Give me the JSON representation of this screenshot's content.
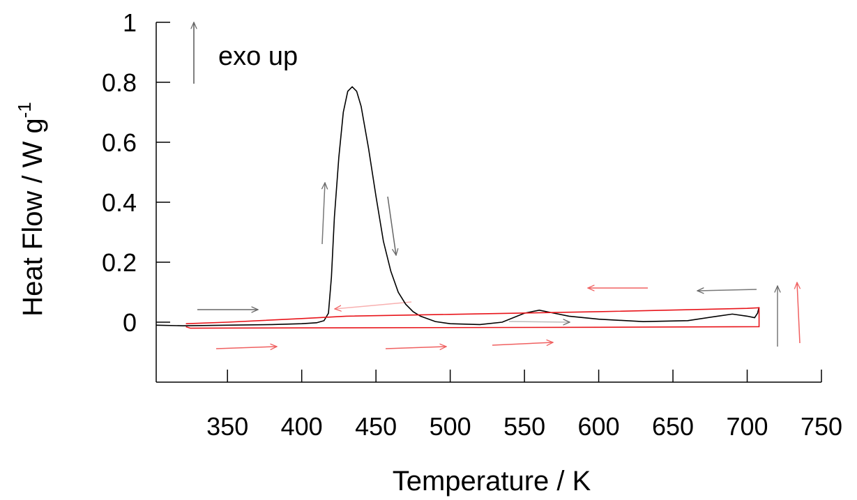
{
  "chart_data": {
    "type": "line",
    "xlabel": "Temperature / K",
    "ylabel": "Heat Flow / W g",
    "ylabel_sup": "-1",
    "annotation": "exo up",
    "xlim": [
      302,
      750
    ],
    "xticks": [
      350,
      400,
      450,
      500,
      550,
      600,
      650,
      700,
      750
    ],
    "ylim": [
      -0.2,
      1
    ],
    "yticks": [
      0,
      0.2,
      0.4,
      0.6,
      0.8,
      1
    ],
    "series": [
      {
        "color": "#000000",
        "x": [
          302,
          320,
          350,
          380,
          400,
          410,
          415,
          418,
          420,
          422,
          425,
          428,
          431,
          434,
          437,
          440,
          445,
          450,
          455,
          460,
          465,
          470,
          475,
          480,
          490,
          500,
          520,
          535,
          550,
          560,
          570,
          580,
          600,
          630,
          660,
          680,
          690,
          700,
          705,
          707,
          708
        ],
        "values": [
          -0.01,
          -0.012,
          -0.01,
          -0.008,
          -0.005,
          -0.002,
          0.005,
          0.03,
          0.15,
          0.35,
          0.55,
          0.7,
          0.77,
          0.785,
          0.77,
          0.72,
          0.58,
          0.42,
          0.27,
          0.17,
          0.1,
          0.06,
          0.035,
          0.02,
          0.002,
          -0.005,
          -0.008,
          0,
          0.03,
          0.04,
          0.03,
          0.02,
          0.01,
          0.002,
          0.005,
          0.02,
          0.027,
          0.02,
          0.015,
          0.03,
          0.05
        ]
      },
      {
        "color": "#e8141a",
        "x": [
          322,
          350,
          400,
          430,
          500,
          600,
          700,
          708,
          708,
          600,
          400,
          325,
          322
        ],
        "values": [
          -0.005,
          0,
          0.012,
          0.02,
          0.026,
          0.035,
          0.046,
          0.048,
          -0.015,
          -0.017,
          -0.019,
          -0.02,
          -0.015
        ]
      }
    ]
  }
}
